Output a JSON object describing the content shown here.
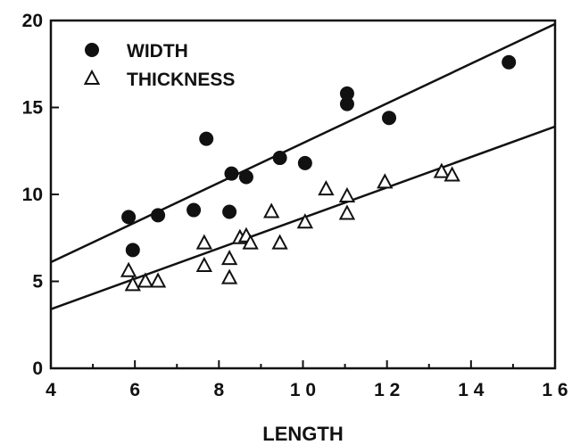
{
  "chart_data": {
    "type": "scatter",
    "title": "",
    "xlabel": "LENGTH",
    "ylabel": "",
    "xlim": [
      4,
      16
    ],
    "ylim": [
      0,
      20
    ],
    "x_ticks": [
      4,
      6,
      8,
      10,
      12,
      14,
      16
    ],
    "x_tick_labels": [
      "4",
      "6",
      "8",
      "1 0",
      "1 2",
      "1 4",
      "1 6"
    ],
    "y_ticks": [
      0,
      5,
      10,
      15,
      20
    ],
    "y_tick_labels": [
      "0",
      "5",
      "10",
      "15",
      "20"
    ],
    "grid": false,
    "legend_position": "top-left",
    "series": [
      {
        "name": "WIDTH",
        "marker": "filled-circle",
        "color": "#111111",
        "points": [
          [
            5.85,
            8.7
          ],
          [
            5.95,
            6.8
          ],
          [
            6.55,
            8.8
          ],
          [
            7.4,
            9.1
          ],
          [
            7.7,
            13.2
          ],
          [
            8.25,
            9.0
          ],
          [
            8.3,
            11.2
          ],
          [
            8.65,
            11.0
          ],
          [
            9.45,
            12.1
          ],
          [
            10.05,
            11.8
          ],
          [
            11.05,
            15.2
          ],
          [
            11.05,
            15.8
          ],
          [
            12.05,
            14.4
          ],
          [
            14.9,
            17.6
          ]
        ],
        "fit_line": {
          "x": [
            4,
            16
          ],
          "y": [
            6.1,
            19.8
          ]
        }
      },
      {
        "name": "THICKNESS",
        "marker": "open-triangle",
        "color": "#111111",
        "points": [
          [
            5.85,
            5.6
          ],
          [
            5.95,
            4.8
          ],
          [
            6.25,
            5.0
          ],
          [
            6.55,
            5.0
          ],
          [
            7.65,
            7.2
          ],
          [
            7.65,
            5.9
          ],
          [
            8.25,
            6.3
          ],
          [
            8.25,
            5.2
          ],
          [
            8.5,
            7.5
          ],
          [
            8.65,
            7.6
          ],
          [
            8.75,
            7.2
          ],
          [
            9.25,
            9.0
          ],
          [
            9.45,
            7.2
          ],
          [
            10.05,
            8.4
          ],
          [
            10.55,
            10.3
          ],
          [
            11.05,
            9.9
          ],
          [
            11.05,
            8.9
          ],
          [
            11.95,
            10.7
          ],
          [
            13.3,
            11.3
          ],
          [
            13.55,
            11.1
          ]
        ],
        "fit_line": {
          "x": [
            4,
            16
          ],
          "y": [
            3.4,
            13.9
          ]
        }
      }
    ]
  }
}
